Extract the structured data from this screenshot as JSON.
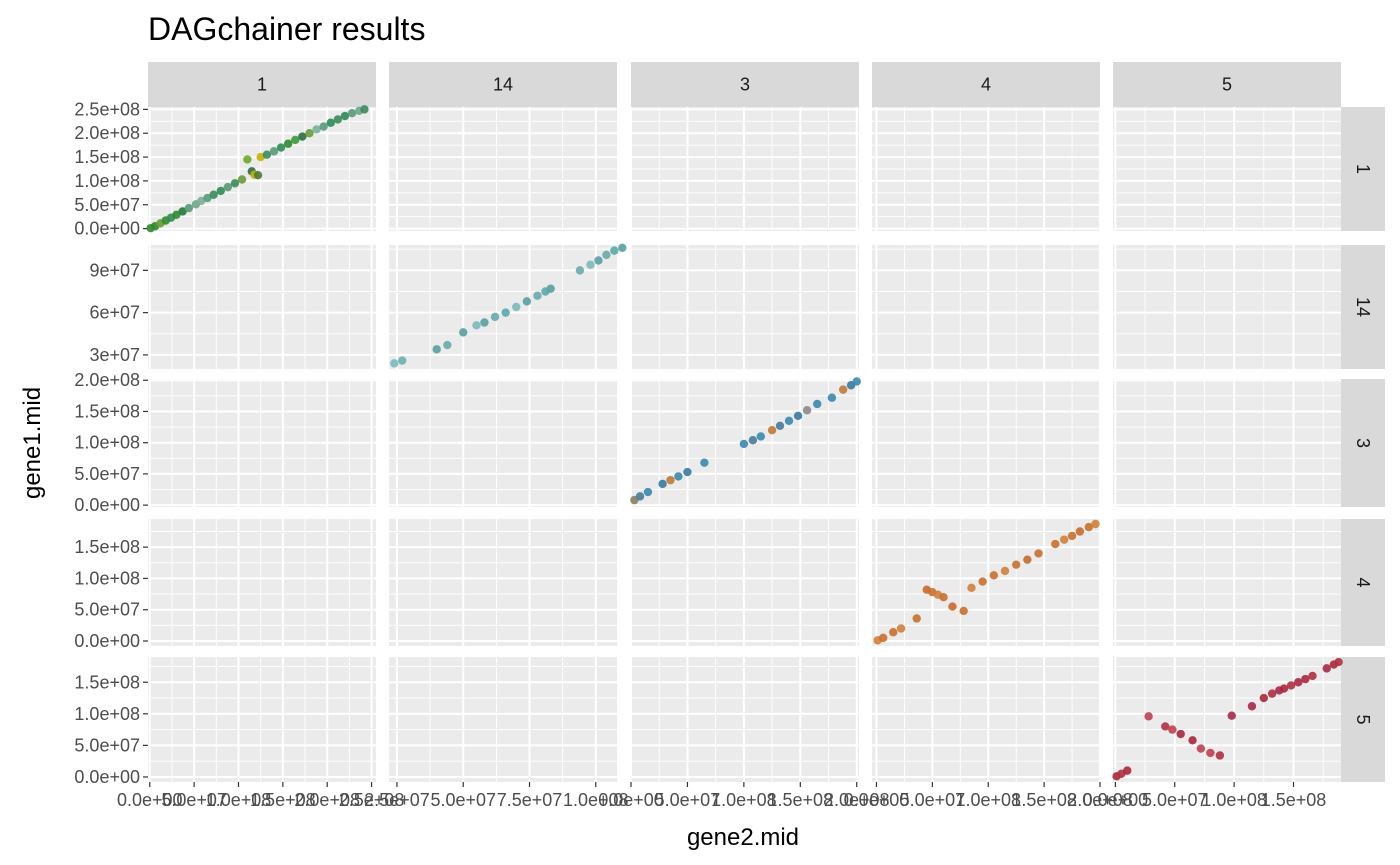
{
  "chart_data": {
    "type": "scatter",
    "title": "DAGchainer results",
    "xlabel": "gene2.mid",
    "ylabel": "gene1.mid",
    "facet_cols": [
      "1",
      "14",
      "3",
      "4",
      "5"
    ],
    "facet_rows": [
      "1",
      "14",
      "3",
      "4",
      "5"
    ],
    "grid": true,
    "colors": {
      "panel_bg": "#ebebeb",
      "grid_major": "#ffffff",
      "strip_bg": "#d9d9d9",
      "strip_text": "#1a1a1a",
      "tick_text": "#4d4d4d"
    },
    "x_axes": [
      {
        "col": "1",
        "xlim": [
          -2000000,
          255000000
        ],
        "ticks": [
          0,
          50000000,
          100000000,
          150000000,
          200000000,
          250000000
        ],
        "tick_labels": [
          "0.0e+00",
          "5.0e+07",
          "1.0e+08",
          "1.5e+08",
          "2.0e+08",
          "2.5e+08"
        ]
      },
      {
        "col": "14",
        "xlim": [
          22000000,
          108000000
        ],
        "ticks": [
          25000000,
          50000000,
          75000000,
          100000000
        ],
        "tick_labels": [
          "2.5e+07",
          "5.0e+07",
          "7.5e+07",
          "1.0e+08"
        ]
      },
      {
        "col": "3",
        "xlim": [
          0,
          202000000
        ],
        "ticks": [
          0,
          50000000,
          100000000,
          150000000,
          200000000
        ],
        "tick_labels": [
          "0.0e+00",
          "5.0e+07",
          "1.0e+08",
          "1.5e+08",
          "2.0e+08"
        ]
      },
      {
        "col": "4",
        "xlim": [
          -4000000,
          200000000
        ],
        "ticks": [
          0,
          50000000,
          100000000,
          150000000,
          200000000
        ],
        "tick_labels": [
          "0.0e+00",
          "5.0e+07",
          "1.0e+08",
          "1.5e+08",
          "2.0e+08"
        ]
      },
      {
        "col": "5",
        "xlim": [
          -2000000,
          190000000
        ],
        "ticks": [
          0,
          50000000,
          100000000,
          150000000
        ],
        "tick_labels": [
          "0.0e+00",
          "5.0e+07",
          "1.0e+08",
          "1.5e+08"
        ]
      }
    ],
    "y_axes": [
      {
        "row": "1",
        "ylim": [
          -5000000,
          255000000
        ],
        "ticks": [
          0,
          50000000,
          100000000,
          150000000,
          200000000,
          250000000
        ],
        "tick_labels": [
          "0.0e+00",
          "5.0e+07",
          "1.0e+08",
          "1.5e+08",
          "2.0e+08",
          "2.5e+08"
        ]
      },
      {
        "row": "14",
        "ylim": [
          20000000,
          108000000
        ],
        "ticks": [
          30000000,
          60000000,
          90000000
        ],
        "tick_labels": [
          "3e+07",
          "6e+07",
          "9e+07"
        ]
      },
      {
        "row": "3",
        "ylim": [
          -3000000,
          202000000
        ],
        "ticks": [
          0,
          50000000,
          100000000,
          150000000,
          200000000
        ],
        "tick_labels": [
          "0.0e+00",
          "5.0e+07",
          "1.0e+08",
          "1.5e+08",
          "2.0e+08"
        ]
      },
      {
        "row": "4",
        "ylim": [
          -8000000,
          195000000
        ],
        "ticks": [
          0,
          50000000,
          100000000,
          150000000
        ],
        "tick_labels": [
          "0.0e+00",
          "5.0e+07",
          "1.0e+08",
          "1.5e+08"
        ]
      },
      {
        "row": "5",
        "ylim": [
          -8000000,
          190000000
        ],
        "ticks": [
          0,
          50000000,
          100000000,
          150000000
        ],
        "tick_labels": [
          "0.0e+00",
          "5.0e+07",
          "1.0e+08",
          "1.5e+08"
        ]
      }
    ],
    "panels": [
      {
        "row": "1",
        "col": "1",
        "color": "#2e8b57",
        "points": [
          [
            1000000,
            1000000,
            "#2e8b2e"
          ],
          [
            6000000,
            5000000,
            "#2e8b2e"
          ],
          [
            12000000,
            11000000,
            "#6a9a3a"
          ],
          [
            18000000,
            17000000,
            "#2e8b2e"
          ],
          [
            24000000,
            23000000,
            "#2e8b57"
          ],
          [
            30000000,
            29000000,
            "#2e8b2e"
          ],
          [
            37000000,
            36000000,
            "#1e7b3a"
          ],
          [
            44000000,
            43000000,
            "#5a9a7a"
          ],
          [
            52000000,
            51000000,
            "#6aa68a"
          ],
          [
            58000000,
            58000000,
            "#7ab09a"
          ],
          [
            65000000,
            64000000,
            "#5a9a7a"
          ],
          [
            72000000,
            71000000,
            "#3a8a5a"
          ],
          [
            80000000,
            79000000,
            "#2e8b57"
          ],
          [
            88000000,
            87000000,
            "#5a9a7a"
          ],
          [
            96000000,
            95000000,
            "#3a8a5a"
          ],
          [
            104000000,
            103000000,
            "#6a9a3a"
          ],
          [
            110000000,
            145000000,
            "#6aaa2a"
          ],
          [
            115000000,
            120000000,
            "#2e6b4a"
          ],
          [
            118000000,
            113000000,
            "#c9b000"
          ],
          [
            122000000,
            112000000,
            "#4a7a3a"
          ],
          [
            125000000,
            150000000,
            "#c9b000"
          ],
          [
            132000000,
            155000000,
            "#3a8a5a"
          ],
          [
            140000000,
            162000000,
            "#5a9a7a"
          ],
          [
            148000000,
            170000000,
            "#2e8b57"
          ],
          [
            156000000,
            178000000,
            "#2e8b2e"
          ],
          [
            164000000,
            186000000,
            "#3a9a3a"
          ],
          [
            172000000,
            193000000,
            "#2e6b4a"
          ],
          [
            180000000,
            200000000,
            "#6a9a3a"
          ],
          [
            188000000,
            208000000,
            "#7ab09a"
          ],
          [
            196000000,
            214000000,
            "#5a9a7a"
          ],
          [
            204000000,
            222000000,
            "#2e8b57"
          ],
          [
            212000000,
            229000000,
            "#3a8a5a"
          ],
          [
            220000000,
            236000000,
            "#2e8b57"
          ],
          [
            228000000,
            242000000,
            "#5a9a7a"
          ],
          [
            236000000,
            247000000,
            "#6aa68a"
          ],
          [
            242000000,
            250000000,
            "#3a8a5a"
          ]
        ]
      },
      {
        "row": "14",
        "col": "14",
        "color": "#5aaaaa",
        "points": [
          [
            24000000,
            24000000,
            "#7ababa"
          ],
          [
            27000000,
            26000000,
            "#6ab0b0"
          ],
          [
            40000000,
            34000000,
            "#5aa0a0"
          ],
          [
            44000000,
            37000000,
            "#6aaaaa"
          ],
          [
            50000000,
            46000000,
            "#5aa0a0"
          ],
          [
            55000000,
            51000000,
            "#7ababa"
          ],
          [
            58000000,
            53000000,
            "#5aa0a0"
          ],
          [
            62000000,
            57000000,
            "#6aaaaa"
          ],
          [
            66000000,
            60000000,
            "#5aaaaa"
          ],
          [
            70000000,
            64000000,
            "#7ababa"
          ],
          [
            74000000,
            68000000,
            "#5aa0a0"
          ],
          [
            78000000,
            72000000,
            "#6aaaaa"
          ],
          [
            81000000,
            75000000,
            "#5aaaaa"
          ],
          [
            83000000,
            77000000,
            "#5aa0a0"
          ],
          [
            94000000,
            90000000,
            "#6aaaaa"
          ],
          [
            98000000,
            94000000,
            "#7ababa"
          ],
          [
            101000000,
            97000000,
            "#5aa0a0"
          ],
          [
            104000000,
            101000000,
            "#6aaaaa"
          ],
          [
            107000000,
            104000000,
            "#5aaaaa"
          ],
          [
            110000000,
            106000000,
            "#5aa0a0"
          ]
        ]
      },
      {
        "row": "3",
        "col": "3",
        "color": "#3a8ab0",
        "points": [
          [
            3000000,
            8000000,
            "#8a8060"
          ],
          [
            8000000,
            14000000,
            "#4a7a9a"
          ],
          [
            15000000,
            21000000,
            "#3a8ab0"
          ],
          [
            28000000,
            34000000,
            "#3a7aa0"
          ],
          [
            35000000,
            40000000,
            "#c07a3a"
          ],
          [
            42000000,
            46000000,
            "#3a8ab0"
          ],
          [
            50000000,
            53000000,
            "#3a7aa0"
          ],
          [
            65000000,
            68000000,
            "#3a8ab0"
          ],
          [
            100000000,
            98000000,
            "#3a8ab0"
          ],
          [
            108000000,
            104000000,
            "#4a7a9a"
          ],
          [
            115000000,
            110000000,
            "#3a8ab0"
          ],
          [
            125000000,
            120000000,
            "#c07a3a"
          ],
          [
            132000000,
            127000000,
            "#4a7a9a"
          ],
          [
            140000000,
            135000000,
            "#3a8ab0"
          ],
          [
            148000000,
            143000000,
            "#3a7aa0"
          ],
          [
            156000000,
            152000000,
            "#8a8a8a"
          ],
          [
            165000000,
            162000000,
            "#3a8ab0"
          ],
          [
            178000000,
            172000000,
            "#3a8ab0"
          ],
          [
            188000000,
            185000000,
            "#c07a3a"
          ],
          [
            195000000,
            192000000,
            "#3a7aa0"
          ],
          [
            200000000,
            198000000,
            "#3a8ab0"
          ]
        ]
      },
      {
        "row": "4",
        "col": "4",
        "color": "#c8702e",
        "points": [
          [
            1000000,
            1000000,
            "#d0803a"
          ],
          [
            6000000,
            5000000,
            "#c8702e"
          ],
          [
            15000000,
            14000000,
            "#c8702e"
          ],
          [
            22000000,
            20000000,
            "#d0803a"
          ],
          [
            36000000,
            36000000,
            "#c8702e"
          ],
          [
            45000000,
            82000000,
            "#c86a2e"
          ],
          [
            50000000,
            78000000,
            "#c8702e"
          ],
          [
            55000000,
            74000000,
            "#d0803a"
          ],
          [
            60000000,
            70000000,
            "#c8702e"
          ],
          [
            68000000,
            55000000,
            "#c86a2e"
          ],
          [
            78000000,
            48000000,
            "#c8702e"
          ],
          [
            85000000,
            85000000,
            "#d0803a"
          ],
          [
            95000000,
            95000000,
            "#c8702e"
          ],
          [
            105000000,
            105000000,
            "#c8702e"
          ],
          [
            115000000,
            112000000,
            "#d0803a"
          ],
          [
            125000000,
            122000000,
            "#c8702e"
          ],
          [
            135000000,
            130000000,
            "#c86a2e"
          ],
          [
            145000000,
            140000000,
            "#c8702e"
          ],
          [
            160000000,
            155000000,
            "#c8702e"
          ],
          [
            168000000,
            162000000,
            "#d0803a"
          ],
          [
            175000000,
            168000000,
            "#c8702e"
          ],
          [
            182000000,
            175000000,
            "#c86a2e"
          ],
          [
            190000000,
            182000000,
            "#c8702e"
          ],
          [
            196000000,
            187000000,
            "#d0803a"
          ]
        ]
      },
      {
        "row": "5",
        "col": "5",
        "color": "#a8284a",
        "points": [
          [
            1000000,
            1000000,
            "#a8283a"
          ],
          [
            5000000,
            5000000,
            "#b03040"
          ],
          [
            10000000,
            10000000,
            "#a8283a"
          ],
          [
            28000000,
            96000000,
            "#c04050"
          ],
          [
            42000000,
            80000000,
            "#b03040"
          ],
          [
            48000000,
            75000000,
            "#c04050"
          ],
          [
            55000000,
            68000000,
            "#a8283a"
          ],
          [
            65000000,
            58000000,
            "#a8283a"
          ],
          [
            72000000,
            45000000,
            "#c04050"
          ],
          [
            80000000,
            38000000,
            "#c04050"
          ],
          [
            88000000,
            34000000,
            "#b03040"
          ],
          [
            98000000,
            97000000,
            "#a8284a"
          ],
          [
            115000000,
            112000000,
            "#a8284a"
          ],
          [
            125000000,
            125000000,
            "#a8283a"
          ],
          [
            132000000,
            132000000,
            "#b03040"
          ],
          [
            138000000,
            137000000,
            "#a8284a"
          ],
          [
            142000000,
            140000000,
            "#a8283a"
          ],
          [
            148000000,
            145000000,
            "#b03040"
          ],
          [
            154000000,
            150000000,
            "#a8284a"
          ],
          [
            160000000,
            155000000,
            "#a8283a"
          ],
          [
            166000000,
            160000000,
            "#b03040"
          ],
          [
            178000000,
            172000000,
            "#a8284a"
          ],
          [
            184000000,
            178000000,
            "#a8283a"
          ],
          [
            188000000,
            182000000,
            "#b03040"
          ]
        ]
      }
    ]
  }
}
